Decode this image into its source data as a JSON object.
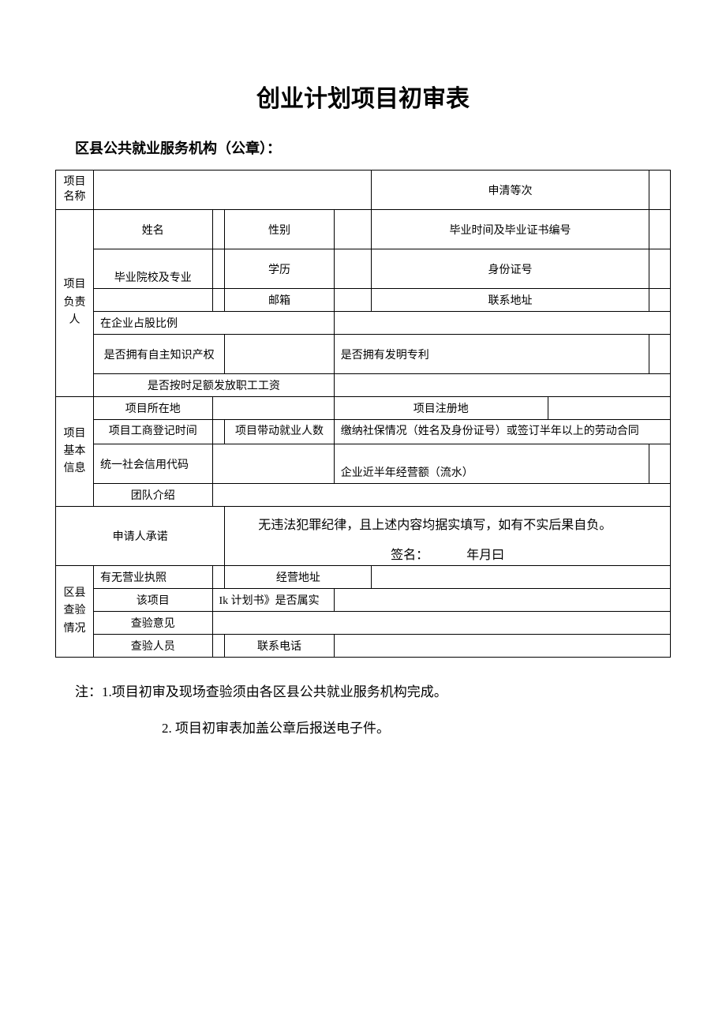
{
  "title": "创业计划项目初审表",
  "subtitle": "区县公共就业服务机构（公章）：",
  "labels": {
    "project_name": "项目\n名称",
    "apply_level": "申清等次",
    "leader": "项目负责人",
    "name": "姓名",
    "gender": "性别",
    "grad_time_cert": "毕业时间及毕业证书编号",
    "school_major": "毕业院校及专业",
    "education": "学历",
    "id_number": "身份证号",
    "email": "邮箱",
    "address": "联系地址",
    "share_ratio": "在企业占股比例",
    "has_ip": "是否拥有自主知识产权",
    "has_patent": "是否拥有发明专利",
    "salary_on_time": "是否按时足额发放职工工资",
    "basic_info": "项目基本信息",
    "project_location": "项目所在地",
    "project_reg_place": "项目注册地",
    "biz_reg_time": "项目工商登记时间",
    "employ_count": "项目带动就业人数",
    "social_security": "缴纳社保情况（姓名及身份证号）或签订半年以上的劳动合同",
    "credit_code": "统一社会信用代码",
    "revenue": "企业近半年经营额（流水）",
    "team_intro": "团队介绍",
    "applicant_commit": "申请人承诺",
    "commit_text": "　　无违法犯罪纪律，且上述内容均据实填写，如有不实后果自负。",
    "sign": "签名：",
    "date": "年月曰",
    "county_check": "区县查验情况",
    "has_license": "有无营业执照",
    "biz_address": "经营地址",
    "this_project": "该项目",
    "plan_real": "Ik 计划书》是否属实",
    "check_opinion": "查验意见",
    "checker": "查验人员",
    "phone": "联系电话"
  },
  "notes": {
    "n1": "注：1.项目初审及现场查验须由各区县公共就业服务机构完成。",
    "n2": "2. 项目初审表加盖公章后报送电子件。"
  },
  "style": {
    "background": "#ffffff",
    "border_color": "#000000",
    "title_fontsize": 30,
    "body_fontsize": 14,
    "notes_fontsize": 17
  }
}
